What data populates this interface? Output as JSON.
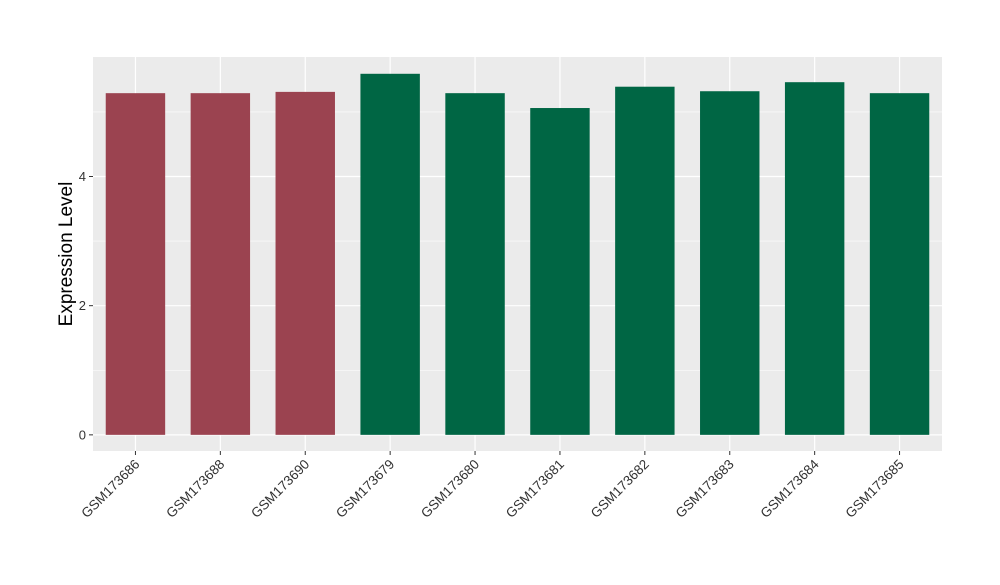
{
  "chart_data": {
    "type": "bar",
    "title": "",
    "xlabel": "",
    "ylabel": "Expression Level",
    "ylim": [
      -0.25,
      5.85
    ],
    "yticks": [
      0,
      2,
      4
    ],
    "grid": true,
    "legend": "none",
    "categories": [
      "GSM173686",
      "GSM173688",
      "GSM173690",
      "GSM173679",
      "GSM173680",
      "GSM173681",
      "GSM173682",
      "GSM173683",
      "GSM173684",
      "GSM173685"
    ],
    "values": [
      5.29,
      5.29,
      5.31,
      5.59,
      5.29,
      5.06,
      5.39,
      5.32,
      5.46,
      5.29
    ],
    "group_colors": [
      "#9b4350",
      "#9b4350",
      "#9b4350",
      "#006644",
      "#006644",
      "#006644",
      "#006644",
      "#006644",
      "#006644",
      "#006644"
    ],
    "panel_background": "#ebebeb"
  }
}
